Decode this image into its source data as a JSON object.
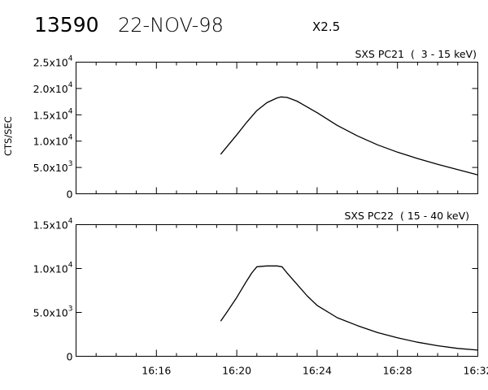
{
  "header": {
    "number": "13590",
    "date": "22-NOV-98",
    "flare_class": "X2.5"
  },
  "colors": {
    "background": "#ffffff",
    "ink": "#000000"
  },
  "chart_data": [
    {
      "type": "line",
      "title": "SXS PC21  (  3 - 15 keV)",
      "ylabel": "CTS/SEC",
      "xlabel": "",
      "ylim": [
        0,
        25000
      ],
      "y_ticks": [
        {
          "value": 0,
          "mantissa": "0",
          "exp": ""
        },
        {
          "value": 5000,
          "mantissa": "5.0x10",
          "exp": "3"
        },
        {
          "value": 10000,
          "mantissa": "1.0x10",
          "exp": "4"
        },
        {
          "value": 15000,
          "mantissa": "1.5x10",
          "exp": "4"
        },
        {
          "value": 20000,
          "mantissa": "2.0x10",
          "exp": "4"
        },
        {
          "value": 25000,
          "mantissa": "2.5x10",
          "exp": "4"
        }
      ],
      "xlim": [
        "16:12",
        "16:32"
      ],
      "x_tick_labels": [],
      "grid": false,
      "series": [
        {
          "x": [
            "16:19:12",
            "16:19:30",
            "16:20:00",
            "16:20:30",
            "16:21:00",
            "16:21:30",
            "16:22:00",
            "16:22:12",
            "16:22:30",
            "16:23:00",
            "16:23:30",
            "16:24:00",
            "16:25:00",
            "16:26:00",
            "16:27:00",
            "16:28:00",
            "16:29:00",
            "16:30:00",
            "16:31:00",
            "16:32:00"
          ],
          "values": [
            7500,
            8900,
            11200,
            13600,
            15800,
            17300,
            18200,
            18400,
            18300,
            17600,
            16500,
            15400,
            13000,
            11000,
            9300,
            7900,
            6700,
            5600,
            4600,
            3600
          ]
        }
      ]
    },
    {
      "type": "line",
      "title": "SXS PC22  ( 15 - 40 keV)",
      "ylabel": "",
      "xlabel": "",
      "ylim": [
        0,
        15000
      ],
      "y_ticks": [
        {
          "value": 0,
          "mantissa": "0",
          "exp": ""
        },
        {
          "value": 5000,
          "mantissa": "5.0x10",
          "exp": "3"
        },
        {
          "value": 10000,
          "mantissa": "1.0x10",
          "exp": "4"
        },
        {
          "value": 15000,
          "mantissa": "1.5x10",
          "exp": "4"
        }
      ],
      "xlim": [
        "16:12",
        "16:32"
      ],
      "x_tick_labels": [
        "16:16",
        "16:20",
        "16:24",
        "16:28",
        "16:32"
      ],
      "grid": false,
      "series": [
        {
          "x": [
            "16:19:12",
            "16:19:30",
            "16:20:00",
            "16:20:30",
            "16:20:45",
            "16:21:00",
            "16:21:30",
            "16:22:00",
            "16:22:15",
            "16:22:30",
            "16:23:00",
            "16:23:30",
            "16:24:00",
            "16:25:00",
            "16:26:00",
            "16:27:00",
            "16:28:00",
            "16:29:00",
            "16:30:00",
            "16:31:00",
            "16:32:00"
          ],
          "values": [
            4000,
            5000,
            6700,
            8600,
            9500,
            10200,
            10300,
            10300,
            10200,
            9500,
            8200,
            6900,
            5800,
            4400,
            3500,
            2700,
            2100,
            1600,
            1200,
            900,
            700
          ]
        }
      ]
    }
  ]
}
